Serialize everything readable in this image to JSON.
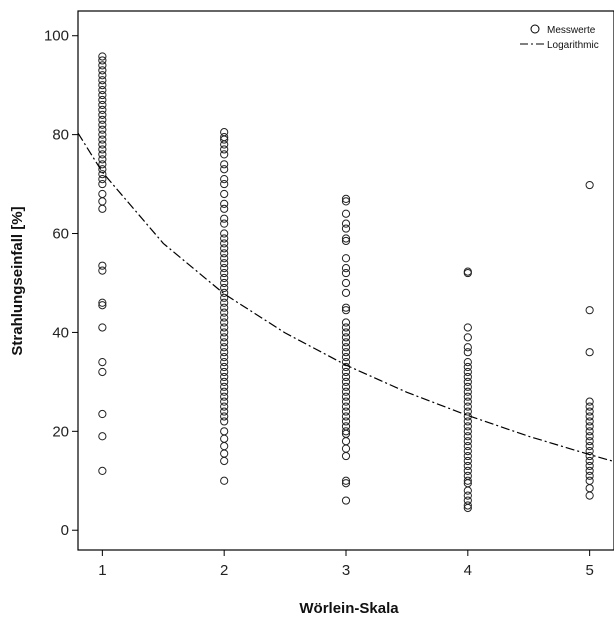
{
  "chart_data": {
    "type": "scatter",
    "xlabel": "Wörlein-Skala",
    "ylabel": "Strahlungseinfall [%]",
    "xlim": [
      0.8,
      5.2
    ],
    "ylim": [
      -4,
      105
    ],
    "xticks": [
      1,
      2,
      3,
      4,
      5
    ],
    "yticks": [
      0,
      20,
      40,
      60,
      80,
      100
    ],
    "grid": false,
    "legend_position": "top-right",
    "legend": [
      {
        "label": "Messwerte",
        "marker": "circle"
      },
      {
        "label": "Logarithmic",
        "marker": "dash-dot-line"
      }
    ],
    "series": [
      {
        "name": "Messwerte",
        "points": [
          [
            1,
            12
          ],
          [
            1,
            19
          ],
          [
            1,
            23.5
          ],
          [
            1,
            32
          ],
          [
            1,
            34
          ],
          [
            1,
            41
          ],
          [
            1,
            45.5
          ],
          [
            1,
            46
          ],
          [
            1,
            52.5
          ],
          [
            1,
            53.5
          ],
          [
            1,
            65
          ],
          [
            1,
            66.5
          ],
          [
            1,
            68
          ],
          [
            1,
            70
          ],
          [
            1,
            71
          ],
          [
            1,
            72
          ],
          [
            1,
            73
          ],
          [
            1,
            74
          ],
          [
            1,
            75
          ],
          [
            1,
            76
          ],
          [
            1,
            77
          ],
          [
            1,
            78
          ],
          [
            1,
            79
          ],
          [
            1,
            80
          ],
          [
            1,
            81
          ],
          [
            1,
            82
          ],
          [
            1,
            83
          ],
          [
            1,
            84
          ],
          [
            1,
            85
          ],
          [
            1,
            86
          ],
          [
            1,
            87
          ],
          [
            1,
            88
          ],
          [
            1,
            89
          ],
          [
            1,
            90
          ],
          [
            1,
            91
          ],
          [
            1,
            92
          ],
          [
            1,
            93
          ],
          [
            1,
            94
          ],
          [
            1,
            95
          ],
          [
            1,
            95.8
          ],
          [
            2,
            10
          ],
          [
            2,
            14
          ],
          [
            2,
            15.5
          ],
          [
            2,
            17
          ],
          [
            2,
            18.5
          ],
          [
            2,
            20
          ],
          [
            2,
            22
          ],
          [
            2,
            23
          ],
          [
            2,
            24
          ],
          [
            2,
            25
          ],
          [
            2,
            26
          ],
          [
            2,
            27
          ],
          [
            2,
            28
          ],
          [
            2,
            29
          ],
          [
            2,
            30
          ],
          [
            2,
            31
          ],
          [
            2,
            32
          ],
          [
            2,
            33
          ],
          [
            2,
            34
          ],
          [
            2,
            35
          ],
          [
            2,
            36
          ],
          [
            2,
            37
          ],
          [
            2,
            38
          ],
          [
            2,
            39
          ],
          [
            2,
            40
          ],
          [
            2,
            41
          ],
          [
            2,
            42
          ],
          [
            2,
            43
          ],
          [
            2,
            44
          ],
          [
            2,
            45
          ],
          [
            2,
            46
          ],
          [
            2,
            47
          ],
          [
            2,
            48
          ],
          [
            2,
            49
          ],
          [
            2,
            50
          ],
          [
            2,
            51
          ],
          [
            2,
            52
          ],
          [
            2,
            53
          ],
          [
            2,
            54
          ],
          [
            2,
            55
          ],
          [
            2,
            56
          ],
          [
            2,
            57
          ],
          [
            2,
            58
          ],
          [
            2,
            59
          ],
          [
            2,
            60
          ],
          [
            2,
            62
          ],
          [
            2,
            63
          ],
          [
            2,
            65
          ],
          [
            2,
            66
          ],
          [
            2,
            68
          ],
          [
            2,
            70
          ],
          [
            2,
            71
          ],
          [
            2,
            73
          ],
          [
            2,
            74
          ],
          [
            2,
            76
          ],
          [
            2,
            77
          ],
          [
            2,
            78
          ],
          [
            2,
            79
          ],
          [
            2,
            79.5
          ],
          [
            2,
            80.5
          ],
          [
            3,
            6
          ],
          [
            3,
            9.5
          ],
          [
            3,
            10
          ],
          [
            3,
            15
          ],
          [
            3,
            16.5
          ],
          [
            3,
            18
          ],
          [
            3,
            19.5
          ],
          [
            3,
            20
          ],
          [
            3,
            21
          ],
          [
            3,
            22
          ],
          [
            3,
            23
          ],
          [
            3,
            24
          ],
          [
            3,
            25
          ],
          [
            3,
            26
          ],
          [
            3,
            27
          ],
          [
            3,
            28
          ],
          [
            3,
            29
          ],
          [
            3,
            30
          ],
          [
            3,
            31
          ],
          [
            3,
            32
          ],
          [
            3,
            33
          ],
          [
            3,
            34
          ],
          [
            3,
            35
          ],
          [
            3,
            36
          ],
          [
            3,
            37
          ],
          [
            3,
            38
          ],
          [
            3,
            39
          ],
          [
            3,
            40
          ],
          [
            3,
            41
          ],
          [
            3,
            42
          ],
          [
            3,
            44.5
          ],
          [
            3,
            45
          ],
          [
            3,
            48
          ],
          [
            3,
            50
          ],
          [
            3,
            52
          ],
          [
            3,
            53
          ],
          [
            3,
            55
          ],
          [
            3,
            58.5
          ],
          [
            3,
            59
          ],
          [
            3,
            61
          ],
          [
            3,
            62
          ],
          [
            3,
            64
          ],
          [
            3,
            66.5
          ],
          [
            3,
            67
          ],
          [
            4,
            4.5
          ],
          [
            4,
            5
          ],
          [
            4,
            6
          ],
          [
            4,
            7
          ],
          [
            4,
            8
          ],
          [
            4,
            9.5
          ],
          [
            4,
            10
          ],
          [
            4,
            11
          ],
          [
            4,
            12
          ],
          [
            4,
            13
          ],
          [
            4,
            14
          ],
          [
            4,
            15
          ],
          [
            4,
            16
          ],
          [
            4,
            17
          ],
          [
            4,
            18
          ],
          [
            4,
            19
          ],
          [
            4,
            20
          ],
          [
            4,
            21
          ],
          [
            4,
            22
          ],
          [
            4,
            23
          ],
          [
            4,
            24
          ],
          [
            4,
            25
          ],
          [
            4,
            26
          ],
          [
            4,
            27
          ],
          [
            4,
            28
          ],
          [
            4,
            29
          ],
          [
            4,
            30
          ],
          [
            4,
            31
          ],
          [
            4,
            32
          ],
          [
            4,
            33
          ],
          [
            4,
            34
          ],
          [
            4,
            36
          ],
          [
            4,
            37
          ],
          [
            4,
            39
          ],
          [
            4,
            41
          ],
          [
            4,
            52
          ],
          [
            4,
            52.3
          ],
          [
            5,
            7
          ],
          [
            5,
            8.5
          ],
          [
            5,
            10
          ],
          [
            5,
            11
          ],
          [
            5,
            12
          ],
          [
            5,
            13
          ],
          [
            5,
            14
          ],
          [
            5,
            15
          ],
          [
            5,
            16
          ],
          [
            5,
            17
          ],
          [
            5,
            18
          ],
          [
            5,
            19
          ],
          [
            5,
            20
          ],
          [
            5,
            21
          ],
          [
            5,
            22
          ],
          [
            5,
            23
          ],
          [
            5,
            24
          ],
          [
            5,
            25
          ],
          [
            5,
            26
          ],
          [
            5,
            36
          ],
          [
            5,
            44.5
          ],
          [
            5,
            69.8
          ]
        ]
      },
      {
        "name": "Logarithmic",
        "curve": "y = 72.4 - 35.5 * ln(x)",
        "points": [
          [
            0.8,
            80.3
          ],
          [
            1,
            72.4
          ],
          [
            1.5,
            58
          ],
          [
            2,
            47.8
          ],
          [
            2.5,
            39.9
          ],
          [
            3,
            33.4
          ],
          [
            3.5,
            27.9
          ],
          [
            4,
            23.2
          ],
          [
            4.5,
            19
          ],
          [
            5,
            15.3
          ],
          [
            5.2,
            13.9
          ]
        ]
      }
    ]
  }
}
